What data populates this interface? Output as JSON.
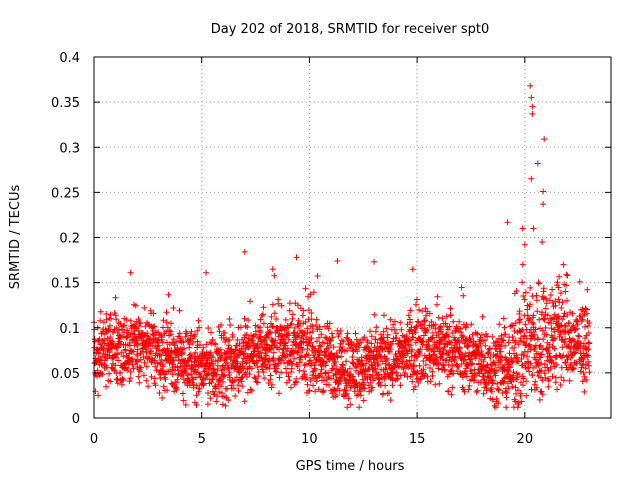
{
  "chart_data": {
    "type": "scatter",
    "title": "Day 202 of 2018, SRMTID for receiver spt0",
    "xlabel": "GPS time / hours",
    "ylabel": "SRMTID / TECUs",
    "xlim": [
      0,
      24
    ],
    "ylim": [
      0,
      0.4
    ],
    "xticks": [
      0,
      5,
      10,
      15,
      20
    ],
    "xtick_labels": [
      "0",
      "5",
      "10",
      "15",
      "20"
    ],
    "yticks": [
      0,
      0.05,
      0.1,
      0.15,
      0.2,
      0.25,
      0.3,
      0.35,
      0.4
    ],
    "ytick_labels": [
      "0",
      "0.05",
      "0.1",
      "0.15",
      "0.2",
      "0.25",
      "0.3",
      "0.35",
      "0.4"
    ],
    "grid": true,
    "marker": "plus",
    "series_color": "#ff0000",
    "series": [
      {
        "name": "SRMTID spt0",
        "points_description": "dense measurements every ~30 s from 0 to 23 h",
        "x_range": [
          0,
          23
        ],
        "baseline_band": [
          0.02,
          0.13
        ],
        "peaks": [
          {
            "x": 1.7,
            "y": 0.161
          },
          {
            "x": 5.2,
            "y": 0.161
          },
          {
            "x": 7.0,
            "y": 0.184
          },
          {
            "x": 8.3,
            "y": 0.165
          },
          {
            "x": 9.4,
            "y": 0.178
          },
          {
            "x": 11.3,
            "y": 0.174
          },
          {
            "x": 13.0,
            "y": 0.173
          },
          {
            "x": 19.2,
            "y": 0.217
          },
          {
            "x": 19.9,
            "y": 0.21
          },
          {
            "x": 20.0,
            "y": 0.192
          },
          {
            "x": 20.25,
            "y": 0.368
          },
          {
            "x": 20.3,
            "y": 0.355
          },
          {
            "x": 20.35,
            "y": 0.345
          },
          {
            "x": 20.35,
            "y": 0.337
          },
          {
            "x": 20.3,
            "y": 0.265
          },
          {
            "x": 20.6,
            "y": 0.282
          },
          {
            "x": 20.9,
            "y": 0.309
          },
          {
            "x": 20.85,
            "y": 0.251
          },
          {
            "x": 20.85,
            "y": 0.237
          },
          {
            "x": 20.8,
            "y": 0.195
          },
          {
            "x": 20.4,
            "y": 0.21
          },
          {
            "x": 20.7,
            "y": 0.02
          }
        ]
      }
    ]
  }
}
